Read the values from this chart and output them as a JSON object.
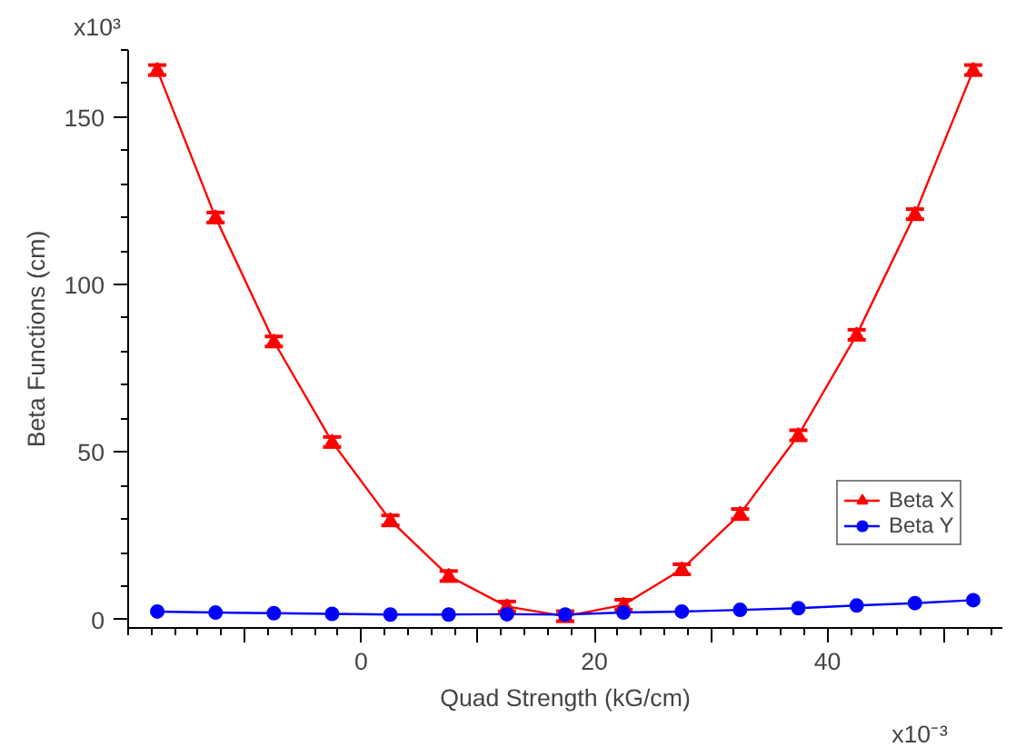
{
  "chart_data": {
    "type": "line",
    "xlabel": "Quad Strength (kG/cm)",
    "ylabel": "Beta Functions (cm)",
    "annotations": [
      "x10³",
      "x10⁻³"
    ],
    "x": [
      -17.5,
      -12.5,
      -7.5,
      -2.5,
      2.5,
      7.5,
      12.5,
      17.5,
      22.5,
      27.5,
      32.5,
      37.5,
      42.5,
      47.5,
      52.5
    ],
    "series": [
      {
        "name": "Beta X",
        "color": "#ff0000",
        "marker": "triangle",
        "errors": [
          1.5,
          1.5,
          1.5,
          1.5,
          1.5,
          1.5,
          1.5,
          1.5,
          1.5,
          1.5,
          1.5,
          1.5,
          1.5,
          1.5,
          1.5
        ],
        "values": [
          164,
          120,
          83,
          53,
          29.6,
          13,
          3.9,
          1,
          4.4,
          15,
          31.5,
          55,
          85,
          121,
          164
        ]
      },
      {
        "name": "Beta Y",
        "color": "#0000ff",
        "marker": "circle",
        "values": [
          2.4,
          2.1,
          1.9,
          1.7,
          1.5,
          1.5,
          1.6,
          1.5,
          2.1,
          2.4,
          2.9,
          3.4,
          4.2,
          4.9,
          5.8
        ]
      }
    ],
    "xlim": [
      -20,
      55
    ],
    "ylim": [
      -2.5,
      170
    ],
    "xticks": [
      {
        "value": -10,
        "label": null
      },
      0,
      {
        "value": 10,
        "label": null
      },
      20,
      {
        "value": 30,
        "label": null
      },
      40,
      {
        "value": 50,
        "label": null
      }
    ],
    "yticks": [
      0,
      50,
      100,
      150
    ],
    "grid": false,
    "legend": "right"
  }
}
